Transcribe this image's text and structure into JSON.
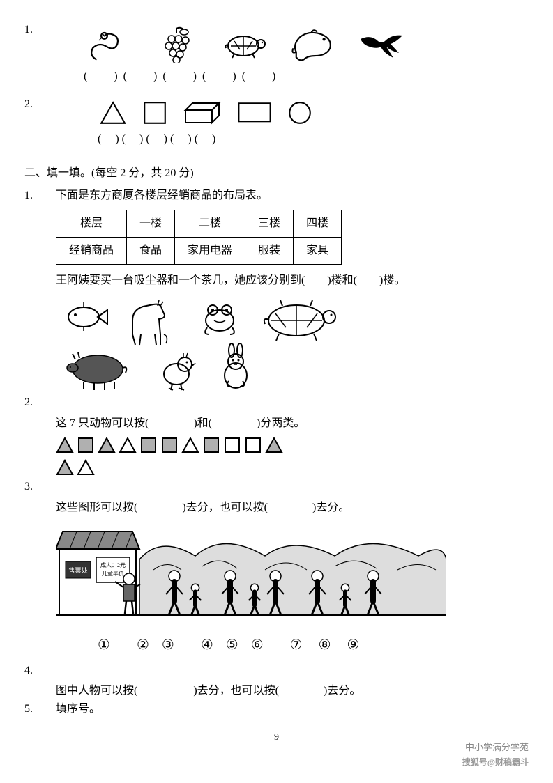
{
  "q1": {
    "num": "1."
  },
  "q2": {
    "num": "2."
  },
  "blank_item": "(　　)",
  "blank_item_s": "(　 )",
  "section2": {
    "heading": "二、填一填。(每空 2 分，共 20 分)"
  },
  "s2q1": {
    "num": "1.",
    "intro": "下面是东方商厦各楼层经销商品的布局表。",
    "table": {
      "r1": [
        "楼层",
        "一楼",
        "二楼",
        "三楼",
        "四楼"
      ],
      "r2": [
        "经销商品",
        "食品",
        "家用电器",
        "服装",
        "家具"
      ]
    },
    "line": "王阿姨要买一台吸尘器和一个茶几，她应该分别到(　　)楼和(　　)楼。"
  },
  "s2q2": {
    "num": "2.",
    "line": "这 7 只动物可以按(　　　　)和(　　　　)分两类。"
  },
  "s2q3": {
    "num": "3.",
    "shapes": [
      {
        "type": "tri",
        "fill": "#b0b0b0"
      },
      {
        "type": "sq",
        "fill": "#b0b0b0"
      },
      {
        "type": "tri",
        "fill": "#b0b0b0"
      },
      {
        "type": "tri",
        "fill": "none"
      },
      {
        "type": "sq",
        "fill": "#b0b0b0"
      },
      {
        "type": "sq",
        "fill": "#b0b0b0"
      },
      {
        "type": "tri",
        "fill": "none"
      },
      {
        "type": "sq",
        "fill": "#b0b0b0"
      },
      {
        "type": "sq",
        "fill": "none"
      },
      {
        "type": "sq",
        "fill": "none"
      },
      {
        "type": "tri",
        "fill": "#b0b0b0"
      },
      {
        "type": "tri",
        "fill": "#b0b0b0"
      },
      {
        "type": "tri",
        "fill": "none"
      }
    ],
    "row1_count": 11,
    "line": "这些图形可以按(　　　　)去分，也可以按(　　　　)去分。"
  },
  "s2q4": {
    "num": "4.",
    "ticket_label": "售票处",
    "price_label1": "成人：2元",
    "price_label2": "儿童半价",
    "circled": [
      "①",
      "②",
      "③",
      "④",
      "⑤",
      "⑥",
      "⑦",
      "⑧",
      "⑨"
    ],
    "line": "图中人物可以按(　　　　　)去分，也可以按(　　　　)去分。"
  },
  "s2q5": {
    "num": "5.",
    "line": "填序号。"
  },
  "page_number": "9",
  "watermark1": "中小学满分学苑",
  "watermark2": "搜狐号@财稿霸斗"
}
